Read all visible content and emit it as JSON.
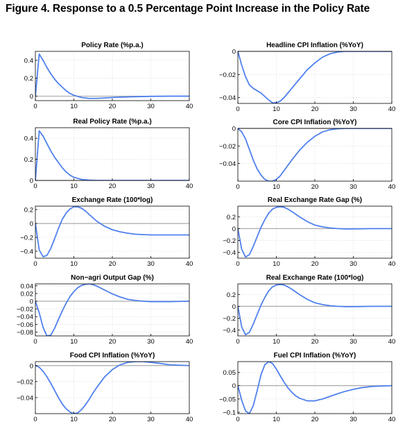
{
  "figure": {
    "title": "Figure 4. Response to a 0.5 Percentage Point Increase in the Policy Rate"
  },
  "colors": {
    "line": "#4f80ee",
    "zero": "#aaaaaa",
    "grid": "#c8c8c8",
    "axis": "#000000"
  },
  "chart_data": [
    {
      "type": "line",
      "title": "Policy Rate (%p.a.)",
      "xlim": [
        0,
        40
      ],
      "ylim": [
        -0.05,
        0.5
      ],
      "grid": true,
      "xticks": [
        "0",
        "10",
        "20",
        "30",
        "40"
      ],
      "yticks": [
        "0",
        "0.2",
        "0.4"
      ],
      "ytick_values": [
        0,
        0.2,
        0.4
      ],
      "series": [
        {
          "x": [
            0,
            1,
            2,
            3,
            4,
            5,
            6,
            7,
            8,
            9,
            10,
            12,
            14,
            16,
            18,
            20,
            25,
            30,
            35,
            40
          ],
          "y": [
            0,
            0.47,
            0.4,
            0.32,
            0.25,
            0.19,
            0.14,
            0.1,
            0.06,
            0.03,
            0.01,
            -0.015,
            -0.025,
            -0.025,
            -0.02,
            -0.015,
            -0.007,
            -0.002,
            0,
            0
          ]
        }
      ]
    },
    {
      "type": "line",
      "title": "Headline CPI Inflation (%YoY)",
      "xlim": [
        0,
        40
      ],
      "ylim": [
        -0.045,
        0.0
      ],
      "grid": true,
      "xticks": [
        "0",
        "10",
        "20",
        "30",
        "40"
      ],
      "yticks": [
        "0",
        "−0.02",
        "−0.04"
      ],
      "ytick_values": [
        0,
        -0.02,
        -0.04
      ],
      "series": [
        {
          "x": [
            0,
            1,
            2,
            3,
            4,
            5,
            6,
            7,
            8,
            9,
            10,
            11,
            12,
            13,
            14,
            16,
            18,
            20,
            22,
            24,
            26,
            28,
            30,
            35,
            40
          ],
          "y": [
            0,
            -0.012,
            -0.022,
            -0.029,
            -0.032,
            -0.034,
            -0.036,
            -0.039,
            -0.042,
            -0.0445,
            -0.0445,
            -0.043,
            -0.04,
            -0.036,
            -0.032,
            -0.024,
            -0.016,
            -0.01,
            -0.005,
            -0.002,
            -0.0005,
            0,
            0,
            0,
            0
          ]
        }
      ]
    },
    {
      "type": "line",
      "title": "Real Policy Rate (%p.a.)",
      "xlim": [
        0,
        40
      ],
      "ylim": [
        0,
        0.5
      ],
      "grid": true,
      "xticks": [
        "0",
        "10",
        "20",
        "30",
        "40"
      ],
      "yticks": [
        "0",
        "0.2",
        "0.4"
      ],
      "ytick_values": [
        0,
        0.2,
        0.4
      ],
      "series": [
        {
          "x": [
            0,
            1,
            2,
            3,
            4,
            5,
            6,
            7,
            8,
            9,
            10,
            12,
            14,
            16,
            20,
            25,
            30,
            35,
            40
          ],
          "y": [
            0,
            0.47,
            0.42,
            0.35,
            0.28,
            0.22,
            0.17,
            0.12,
            0.08,
            0.05,
            0.03,
            0.01,
            0.003,
            0,
            0,
            0,
            0,
            0,
            0
          ]
        }
      ]
    },
    {
      "type": "line",
      "title": "Core CPI Inflation (%YoY)",
      "xlim": [
        0,
        40
      ],
      "ylim": [
        -0.06,
        0.0
      ],
      "grid": true,
      "xticks": [
        "0",
        "10",
        "20",
        "30",
        "40"
      ],
      "yticks": [
        "0",
        "−0.02",
        "−0.04"
      ],
      "ytick_values": [
        0,
        -0.02,
        -0.04
      ],
      "series": [
        {
          "x": [
            0,
            1,
            2,
            3,
            4,
            5,
            6,
            7,
            8,
            9,
            10,
            11,
            12,
            14,
            16,
            18,
            20,
            22,
            24,
            26,
            28,
            30,
            35,
            40
          ],
          "y": [
            0,
            -0.004,
            -0.012,
            -0.024,
            -0.036,
            -0.046,
            -0.053,
            -0.058,
            -0.06,
            -0.06,
            -0.058,
            -0.054,
            -0.048,
            -0.036,
            -0.025,
            -0.016,
            -0.009,
            -0.004,
            -0.0015,
            -0.0004,
            0,
            0,
            0,
            0
          ]
        }
      ]
    },
    {
      "type": "line",
      "title": "Exchange Rate (100*log)",
      "xlim": [
        0,
        40
      ],
      "ylim": [
        -0.5,
        0.25
      ],
      "grid": true,
      "xticks": [
        "0",
        "10",
        "20",
        "30",
        "40"
      ],
      "yticks": [
        "0.2",
        "0",
        "−0.2",
        "−0.4"
      ],
      "ytick_values": [
        0.2,
        0,
        -0.2,
        -0.4
      ],
      "series": [
        {
          "x": [
            0,
            1,
            2,
            3,
            4,
            5,
            6,
            7,
            8,
            9,
            10,
            11,
            12,
            13,
            14,
            15,
            16,
            18,
            20,
            22,
            24,
            26,
            28,
            30,
            35,
            40
          ],
          "y": [
            0,
            -0.38,
            -0.48,
            -0.46,
            -0.36,
            -0.22,
            -0.07,
            0.06,
            0.15,
            0.21,
            0.24,
            0.24,
            0.22,
            0.18,
            0.13,
            0.08,
            0.03,
            -0.04,
            -0.09,
            -0.12,
            -0.14,
            -0.155,
            -0.16,
            -0.165,
            -0.165,
            -0.165
          ]
        }
      ]
    },
    {
      "type": "line",
      "title": "Real Exchange Rate Gap (%)",
      "xlim": [
        0,
        40
      ],
      "ylim": [
        -0.5,
        0.38
      ],
      "grid": true,
      "xticks": [
        "0",
        "10",
        "20",
        "30",
        "40"
      ],
      "yticks": [
        "0.2",
        "0",
        "−0.2",
        "−0.4"
      ],
      "ytick_values": [
        0.2,
        0,
        -0.2,
        -0.4
      ],
      "series": [
        {
          "x": [
            0,
            1,
            2,
            3,
            4,
            5,
            6,
            7,
            8,
            9,
            10,
            11,
            12,
            13,
            14,
            16,
            18,
            20,
            22,
            24,
            26,
            28,
            30,
            35,
            40
          ],
          "y": [
            0,
            -0.35,
            -0.48,
            -0.44,
            -0.3,
            -0.14,
            0.02,
            0.15,
            0.26,
            0.33,
            0.36,
            0.37,
            0.36,
            0.33,
            0.29,
            0.2,
            0.12,
            0.06,
            0.03,
            0.01,
            0,
            -0.005,
            -0.005,
            0,
            0
          ]
        }
      ]
    },
    {
      "type": "line",
      "title": "Non−agri Output Gap (%)",
      "xlim": [
        0,
        40
      ],
      "ylim": [
        -0.09,
        0.045
      ],
      "grid": true,
      "xticks": [
        "0",
        "10",
        "20",
        "30",
        "40"
      ],
      "yticks": [
        "0.04",
        "0.02",
        "0",
        "−0.02",
        "−0.04",
        "−0.06",
        "−0.08"
      ],
      "ytick_values": [
        0.04,
        0.02,
        0,
        -0.02,
        -0.04,
        -0.06,
        -0.08
      ],
      "series": [
        {
          "x": [
            0,
            1,
            2,
            3,
            4,
            5,
            6,
            7,
            8,
            9,
            10,
            11,
            12,
            13,
            14,
            15,
            16,
            18,
            20,
            22,
            24,
            26,
            28,
            30,
            35,
            40
          ],
          "y": [
            0,
            -0.03,
            -0.068,
            -0.09,
            -0.088,
            -0.07,
            -0.047,
            -0.025,
            -0.005,
            0.012,
            0.025,
            0.035,
            0.041,
            0.044,
            0.045,
            0.043,
            0.039,
            0.029,
            0.019,
            0.011,
            0.005,
            0.002,
            0,
            -0.001,
            -0.001,
            0
          ]
        }
      ]
    },
    {
      "type": "line",
      "title": "Real Exchange Rate (100*log)",
      "xlim": [
        0,
        40
      ],
      "ylim": [
        -0.5,
        0.38
      ],
      "grid": true,
      "xticks": [
        "0",
        "10",
        "20",
        "30",
        "40"
      ],
      "yticks": [
        "0.2",
        "0",
        "−0.2",
        "−0.4"
      ],
      "ytick_values": [
        0.2,
        0,
        -0.2,
        -0.4
      ],
      "series": [
        {
          "x": [
            0,
            1,
            2,
            3,
            4,
            5,
            6,
            7,
            8,
            9,
            10,
            11,
            12,
            13,
            14,
            16,
            18,
            20,
            22,
            24,
            26,
            28,
            30,
            35,
            40
          ],
          "y": [
            0,
            -0.35,
            -0.48,
            -0.44,
            -0.3,
            -0.14,
            0.02,
            0.15,
            0.26,
            0.33,
            0.36,
            0.37,
            0.36,
            0.33,
            0.29,
            0.2,
            0.12,
            0.06,
            0.03,
            0.01,
            0,
            -0.005,
            -0.005,
            0,
            0
          ]
        }
      ]
    },
    {
      "type": "line",
      "title": "Food CPI Inflation (%YoY)",
      "xlim": [
        0,
        40
      ],
      "ylim": [
        -0.06,
        0.005
      ],
      "grid": true,
      "xticks": [
        "0",
        "10",
        "20",
        "30",
        "40"
      ],
      "yticks": [
        "0",
        "−0.02",
        "−0.04"
      ],
      "ytick_values": [
        0,
        -0.02,
        -0.04
      ],
      "series": [
        {
          "x": [
            0,
            1,
            2,
            3,
            4,
            5,
            6,
            7,
            8,
            9,
            10,
            11,
            12,
            13,
            14,
            15,
            16,
            18,
            20,
            22,
            24,
            26,
            28,
            30,
            32,
            35,
            40
          ],
          "y": [
            0,
            -0.002,
            -0.007,
            -0.014,
            -0.022,
            -0.031,
            -0.04,
            -0.048,
            -0.054,
            -0.058,
            -0.06,
            -0.059,
            -0.055,
            -0.049,
            -0.042,
            -0.034,
            -0.027,
            -0.014,
            -0.005,
            0.001,
            0.004,
            0.005,
            0.005,
            0.004,
            0.003,
            0.001,
            0
          ]
        }
      ]
    },
    {
      "type": "line",
      "title": "Fuel CPI Inflation (%YoY)",
      "xlim": [
        0,
        40
      ],
      "ylim": [
        -0.105,
        0.09
      ],
      "grid": true,
      "xticks": [
        "0",
        "10",
        "20",
        "30",
        "40"
      ],
      "yticks": [
        "0.05",
        "0",
        "−0.05",
        "−0.1"
      ],
      "ytick_values": [
        0.05,
        0,
        -0.05,
        -0.1
      ],
      "series": [
        {
          "x": [
            0,
            1,
            2,
            3,
            4,
            5,
            6,
            7,
            8,
            9,
            10,
            11,
            12,
            13,
            14,
            15,
            16,
            18,
            20,
            22,
            24,
            26,
            28,
            30,
            32,
            35,
            40
          ],
          "y": [
            0,
            -0.055,
            -0.095,
            -0.105,
            -0.075,
            -0.02,
            0.04,
            0.078,
            0.09,
            0.083,
            0.062,
            0.037,
            0.013,
            -0.008,
            -0.025,
            -0.038,
            -0.047,
            -0.057,
            -0.057,
            -0.05,
            -0.04,
            -0.03,
            -0.021,
            -0.014,
            -0.008,
            -0.003,
            0
          ]
        }
      ]
    }
  ]
}
